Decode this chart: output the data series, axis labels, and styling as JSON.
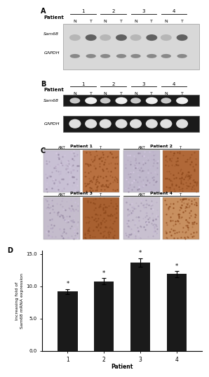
{
  "panel_A_label": "A",
  "panel_B_label": "B",
  "panel_C_label": "C",
  "panel_D_label": "D",
  "patient_label": "Patient",
  "patients": [
    "1",
    "2",
    "3",
    "4"
  ],
  "NT_labels": [
    "N",
    "T"
  ],
  "western_row1_label": "Sam68",
  "western_row2_label": "GAPDH",
  "rt_row1_label": "Sam68",
  "rt_row2_label": "GAPDH",
  "bar_values": [
    9.2,
    10.8,
    13.7,
    11.9
  ],
  "bar_errors": [
    0.35,
    0.45,
    0.65,
    0.45
  ],
  "bar_color": "#1a1a1a",
  "ylabel": "Increasing fold of\nSam68 mRNA expression",
  "xlabel": "Patient",
  "ylim": [
    0,
    15.5
  ],
  "yticks": [
    0.0,
    5.0,
    10.0,
    15.0
  ],
  "ytick_labels": [
    "0.0",
    "5.0",
    "10.0",
    "15.0"
  ],
  "star_label": "*",
  "background_color": "#ffffff",
  "blot_bg": "#d8d8d8",
  "pcr_bg": "#1a1a1a",
  "band_N_wb": "#b0b0b0",
  "band_T_wb": "#606060",
  "band_gapdh_wb": "#888888",
  "band_N_pcr": "#c8c8c8",
  "band_T_pcr": "#f0f0f0",
  "band_gapdh_pcr": "#e0e0e0",
  "ant_color_1": "#c8c0d4",
  "ant_color_2": "#c0b8cc",
  "ant_color_3": "#c4bccc",
  "ant_color_4": "#c8c0d0",
  "t_color_1": "#b87040",
  "t_color_2": "#b06838",
  "t_color_3": "#a86030",
  "t_color_4": "#c89060"
}
